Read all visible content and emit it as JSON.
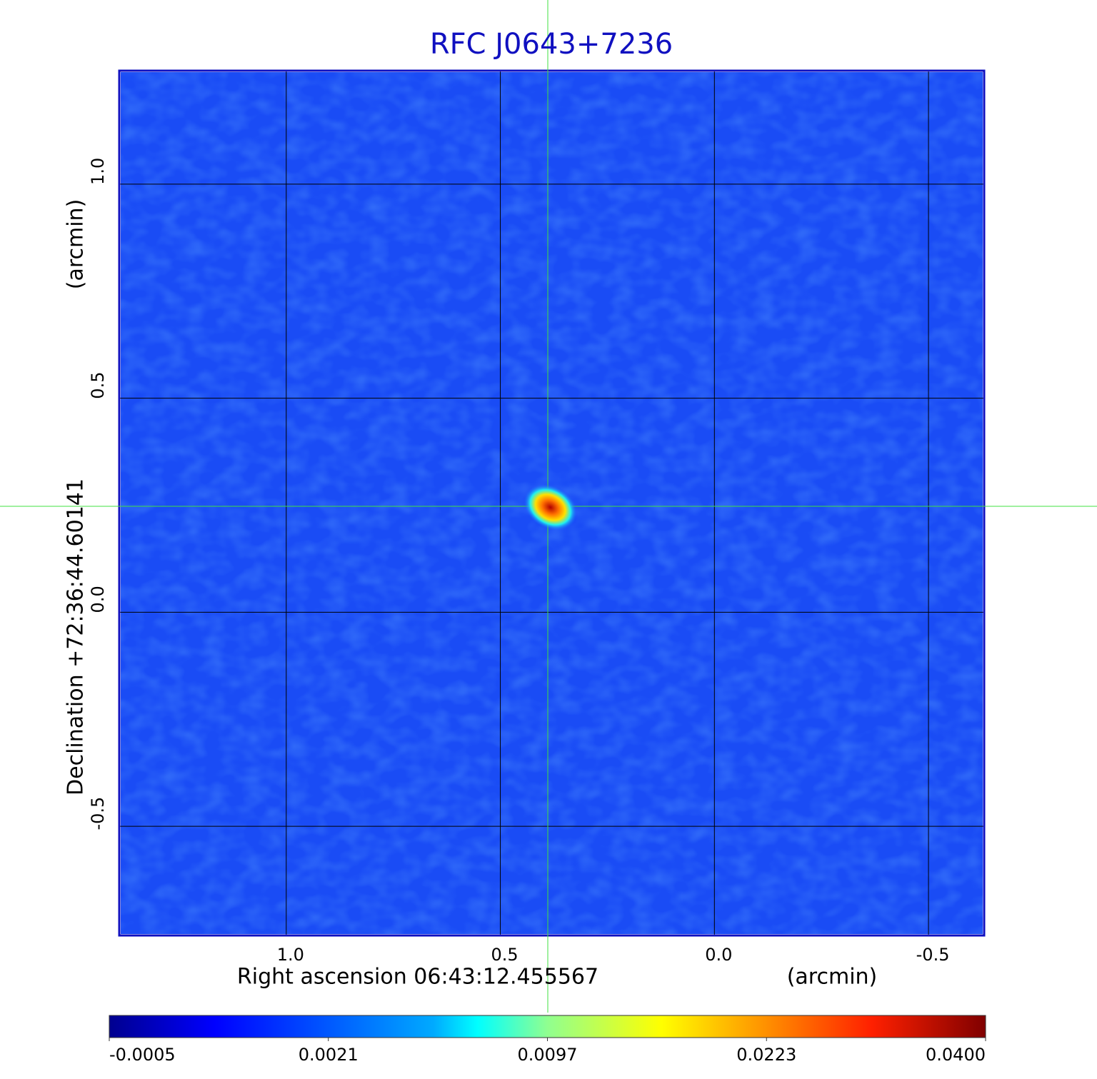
{
  "chart_data": {
    "type": "heatmap",
    "title": "RFC J0643+7236",
    "xlabel": "Right ascension  06:43:12.455567",
    "xunit": "(arcmin)",
    "ylabel": "Declination  +72:36:44.60141",
    "yunit": "(arcmin)",
    "xlim": [
      1.39,
      -0.63
    ],
    "ylim": [
      -0.755,
      1.265
    ],
    "xticks": [
      {
        "value": 1,
        "label": "1.0"
      },
      0.5,
      {
        "value": 0,
        "label": "0.0"
      },
      -0.5
    ],
    "yticks": [
      {
        "value": 1,
        "label": "1.0"
      },
      0.5,
      {
        "value": 0,
        "label": "0.0"
      },
      -0.5
    ],
    "grid": true,
    "colormap": "jet",
    "peak": {
      "x": 0.383,
      "y": 0.245,
      "value": 0.04
    },
    "colorbar_ticks": [
      -0.0005,
      0.0021,
      0.0097,
      0.0223,
      {
        "value": 0.04,
        "label": "0.0400"
      }
    ]
  }
}
